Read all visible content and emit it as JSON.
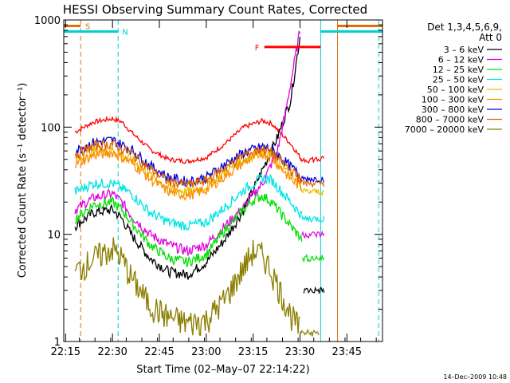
{
  "chart_data": {
    "type": "line",
    "title": "HESSI Observing Summary Count Rates, Corrected",
    "xlabel": "Start Time (02–May–07 22:14:22)",
    "ylabel": "Corrected Count Rate (s⁻¹ detector⁻¹)",
    "footer": "14–Dec–2009 10:48",
    "xlim": [
      22.24,
      23.94
    ],
    "ylim": [
      1,
      1000
    ],
    "yscale": "log",
    "grid": false,
    "x_ticks": [
      {
        "v": 22.25,
        "label": "22:15"
      },
      {
        "v": 22.5,
        "label": "22:30"
      },
      {
        "v": 22.75,
        "label": "22:45"
      },
      {
        "v": 23.0,
        "label": "23:00"
      },
      {
        "v": 23.25,
        "label": "23:15"
      },
      {
        "v": 23.5,
        "label": "23:30"
      },
      {
        "v": 23.75,
        "label": "23:45"
      }
    ],
    "y_ticks": [
      {
        "v": 1,
        "label": "1"
      },
      {
        "v": 10,
        "label": "10"
      },
      {
        "v": 100,
        "label": "100"
      },
      {
        "v": 1000,
        "label": "1000"
      }
    ],
    "legend": {
      "header1": "Det 1,3,4,5,6,9,",
      "header2": "Att 0",
      "position": "right"
    },
    "series": [
      {
        "name": "3 – 6 keV",
        "color": "#000000",
        "values": [
          [
            22.3,
            12
          ],
          [
            22.4,
            16
          ],
          [
            22.5,
            17
          ],
          [
            22.55,
            14
          ],
          [
            22.6,
            10
          ],
          [
            22.7,
            6
          ],
          [
            22.8,
            4.5
          ],
          [
            22.9,
            4.2
          ],
          [
            23.0,
            5.5
          ],
          [
            23.1,
            9
          ],
          [
            23.2,
            17
          ],
          [
            23.3,
            40
          ],
          [
            23.38,
            80
          ],
          [
            23.45,
            180
          ],
          [
            23.5,
            700
          ]
        ]
      },
      {
        "name": "6 – 12 keV",
        "color": "#e000e0",
        "values": [
          [
            22.3,
            17
          ],
          [
            22.4,
            22
          ],
          [
            22.5,
            24
          ],
          [
            22.55,
            20
          ],
          [
            22.6,
            15
          ],
          [
            22.7,
            10
          ],
          [
            22.8,
            8
          ],
          [
            22.9,
            7
          ],
          [
            23.0,
            8
          ],
          [
            23.1,
            12
          ],
          [
            23.2,
            18
          ],
          [
            23.3,
            30
          ],
          [
            23.38,
            60
          ],
          [
            23.42,
            130
          ],
          [
            23.5,
            800
          ]
        ]
      },
      {
        "name": "12 – 25 keV",
        "color": "#00e000",
        "values": [
          [
            22.3,
            14
          ],
          [
            22.4,
            19
          ],
          [
            22.5,
            20
          ],
          [
            22.55,
            17
          ],
          [
            22.6,
            13
          ],
          [
            22.7,
            8
          ],
          [
            22.8,
            6
          ],
          [
            22.9,
            5.5
          ],
          [
            23.0,
            6.5
          ],
          [
            23.1,
            11
          ],
          [
            23.2,
            17
          ],
          [
            23.25,
            21
          ],
          [
            23.3,
            23
          ],
          [
            23.35,
            20
          ],
          [
            23.45,
            12
          ],
          [
            23.51,
            9
          ]
        ]
      },
      {
        "name": "25 – 50 keV",
        "color": "#00e5e5",
        "values": [
          [
            22.3,
            25
          ],
          [
            22.4,
            30
          ],
          [
            22.5,
            30
          ],
          [
            22.6,
            24
          ],
          [
            22.7,
            16
          ],
          [
            22.8,
            13
          ],
          [
            22.9,
            12
          ],
          [
            23.0,
            13
          ],
          [
            23.1,
            18
          ],
          [
            23.2,
            26
          ],
          [
            23.3,
            34
          ],
          [
            23.35,
            32
          ],
          [
            23.45,
            20
          ],
          [
            23.51,
            15
          ]
        ]
      },
      {
        "name": "50 – 100 keV",
        "color": "#e8c000",
        "values": [
          [
            22.3,
            50
          ],
          [
            22.4,
            60
          ],
          [
            22.5,
            62
          ],
          [
            22.6,
            50
          ],
          [
            22.7,
            36
          ],
          [
            22.8,
            27
          ],
          [
            22.9,
            25
          ],
          [
            23.0,
            28
          ],
          [
            23.1,
            38
          ],
          [
            23.2,
            50
          ],
          [
            23.3,
            60
          ],
          [
            23.35,
            55
          ],
          [
            23.45,
            35
          ],
          [
            23.51,
            28
          ]
        ]
      },
      {
        "name": "100 – 300 keV",
        "color": "#ff8c00",
        "values": [
          [
            22.3,
            45
          ],
          [
            22.4,
            55
          ],
          [
            22.5,
            58
          ],
          [
            22.6,
            47
          ],
          [
            22.7,
            33
          ],
          [
            22.8,
            25
          ],
          [
            22.9,
            23
          ],
          [
            23.0,
            26
          ],
          [
            23.1,
            35
          ],
          [
            23.2,
            47
          ],
          [
            23.3,
            57
          ],
          [
            23.35,
            52
          ],
          [
            23.45,
            33
          ],
          [
            23.51,
            27
          ]
        ]
      },
      {
        "name": "300 – 800 keV",
        "color": "#0000e0",
        "values": [
          [
            22.3,
            60
          ],
          [
            22.4,
            72
          ],
          [
            22.5,
            76
          ],
          [
            22.6,
            62
          ],
          [
            22.7,
            44
          ],
          [
            22.8,
            34
          ],
          [
            22.9,
            31
          ],
          [
            23.0,
            34
          ],
          [
            23.1,
            45
          ],
          [
            23.2,
            58
          ],
          [
            23.3,
            66
          ],
          [
            23.35,
            62
          ],
          [
            23.45,
            43
          ],
          [
            23.51,
            34
          ]
        ]
      },
      {
        "name": "800 – 7000 keV",
        "color": "#e06000",
        "values": [
          [
            22.3,
            55
          ],
          [
            22.4,
            67
          ],
          [
            22.5,
            70
          ],
          [
            22.6,
            57
          ],
          [
            22.7,
            41
          ],
          [
            22.8,
            31
          ],
          [
            22.9,
            29
          ],
          [
            23.0,
            32
          ],
          [
            23.1,
            42
          ],
          [
            23.2,
            55
          ],
          [
            23.3,
            63
          ],
          [
            23.35,
            58
          ],
          [
            23.45,
            40
          ],
          [
            23.51,
            32
          ]
        ]
      },
      {
        "name": "7000 – 20000 keV",
        "color": "#8b7d00",
        "values": [
          [
            22.3,
            4.5
          ],
          [
            22.4,
            6
          ],
          [
            22.5,
            7.5
          ],
          [
            22.55,
            6
          ],
          [
            22.6,
            4
          ],
          [
            22.7,
            2.2
          ],
          [
            22.8,
            1.7
          ],
          [
            22.9,
            1.5
          ],
          [
            23.0,
            1.6
          ],
          [
            23.1,
            2.5
          ],
          [
            23.2,
            5
          ],
          [
            23.25,
            7
          ],
          [
            23.3,
            6.5
          ],
          [
            23.35,
            4.5
          ],
          [
            23.45,
            1.8
          ],
          [
            23.5,
            1.3
          ]
        ]
      }
    ],
    "flare_series": {
      "color": "#ff0000",
      "values": [
        [
          22.3,
          90
        ],
        [
          22.4,
          112
        ],
        [
          22.5,
          120
        ],
        [
          22.55,
          112
        ],
        [
          22.6,
          90
        ],
        [
          22.7,
          62
        ],
        [
          22.8,
          50
        ],
        [
          22.9,
          48
        ],
        [
          23.0,
          52
        ],
        [
          23.1,
          70
        ],
        [
          23.2,
          100
        ],
        [
          23.3,
          115
        ],
        [
          23.35,
          108
        ],
        [
          23.45,
          70
        ],
        [
          23.51,
          50
        ]
      ]
    },
    "recovery_segments": [
      {
        "color": "#ff0000",
        "values": [
          [
            23.5,
            50
          ],
          [
            23.63,
            50
          ],
          [
            23.66,
            58
          ],
          [
            23.68,
            120
          ],
          [
            23.69,
            170
          ]
        ]
      },
      {
        "color": "#0000e0",
        "values": [
          [
            23.51,
            33
          ],
          [
            23.63,
            33
          ],
          [
            23.66,
            40
          ],
          [
            23.68,
            80
          ]
        ]
      },
      {
        "color": "#e06000",
        "values": [
          [
            23.51,
            30
          ],
          [
            23.63,
            30
          ],
          [
            23.66,
            38
          ],
          [
            23.68,
            70
          ]
        ]
      },
      {
        "color": "#e8c000",
        "values": [
          [
            23.51,
            25
          ],
          [
            23.63,
            25
          ],
          [
            23.66,
            32
          ],
          [
            23.68,
            60
          ]
        ]
      },
      {
        "color": "#00e5e5",
        "values": [
          [
            23.51,
            14
          ],
          [
            23.63,
            14
          ],
          [
            23.66,
            18
          ],
          [
            23.68,
            40
          ]
        ]
      },
      {
        "color": "#00e000",
        "values": [
          [
            23.51,
            6
          ],
          [
            23.63,
            6
          ],
          [
            23.66,
            9
          ],
          [
            23.68,
            30
          ]
        ]
      },
      {
        "color": "#e000e0",
        "values": [
          [
            23.51,
            10
          ],
          [
            23.63,
            10
          ],
          [
            23.66,
            14
          ],
          [
            23.68,
            35
          ]
        ]
      },
      {
        "color": "#000000",
        "values": [
          [
            23.52,
            3
          ],
          [
            23.63,
            3
          ],
          [
            23.66,
            6
          ],
          [
            23.68,
            25
          ]
        ]
      },
      {
        "color": "#8b7d00",
        "values": [
          [
            23.5,
            1.2
          ],
          [
            23.6,
            1.2
          ]
        ]
      }
    ],
    "left_spike": {
      "values": [
        [
          22.25,
          90
        ],
        [
          22.26,
          70
        ],
        [
          22.265,
          40
        ],
        [
          22.27,
          25
        ]
      ]
    },
    "gaps": [
      [
        22.25,
        22.3
      ],
      [
        23.63,
        23.69
      ]
    ],
    "flags": [
      {
        "label": "S",
        "color": "#e07000",
        "x": [
          22.24,
          22.33
        ],
        "y": 880
      },
      {
        "label": "N",
        "color": "#00d0d0",
        "x": [
          22.24,
          22.53
        ],
        "y": 780
      },
      {
        "label": "F",
        "color": "#ff0000",
        "x": [
          23.31,
          23.61
        ],
        "y": 560
      },
      {
        "label": "",
        "color": "#e07000",
        "x": [
          23.7,
          23.94
        ],
        "y": 880
      },
      {
        "label": "",
        "color": "#00d0d0",
        "x": [
          23.61,
          23.94
        ],
        "y": 780
      }
    ],
    "vlines": [
      {
        "x": 22.24,
        "color": "#00e0e0",
        "dash": false
      },
      {
        "x": 22.33,
        "color": "#e07000",
        "dash": true
      },
      {
        "x": 22.53,
        "color": "#00d0d0",
        "dash": true
      },
      {
        "x": 23.61,
        "color": "#00d0d0",
        "dash": false
      },
      {
        "x": 23.7,
        "color": "#e07000",
        "dash": false
      },
      {
        "x": 23.92,
        "color": "#00d0d0",
        "dash": true
      }
    ]
  }
}
